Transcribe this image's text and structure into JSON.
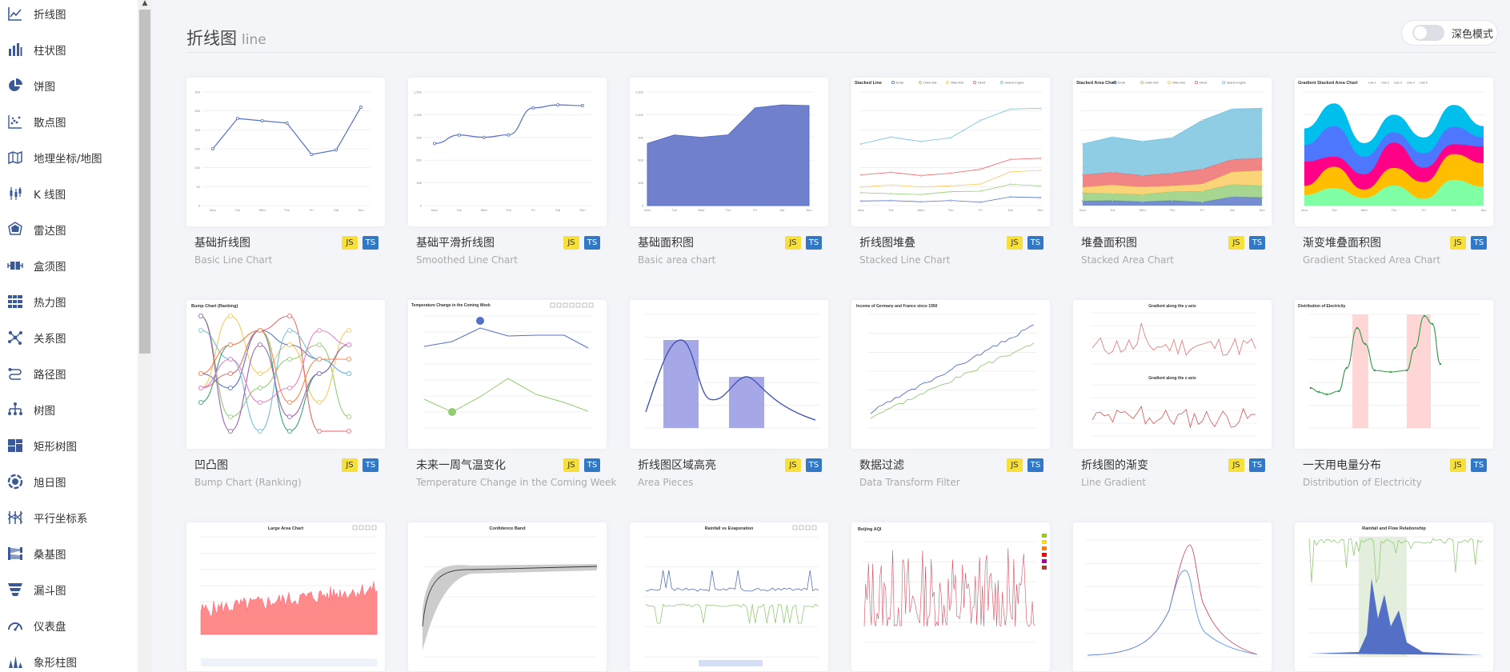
{
  "sidebar": {
    "items": [
      {
        "label": "折线图",
        "icon": "line-chart-icon"
      },
      {
        "label": "柱状图",
        "icon": "bar-chart-icon"
      },
      {
        "label": "饼图",
        "icon": "pie-chart-icon"
      },
      {
        "label": "散点图",
        "icon": "scatter-chart-icon"
      },
      {
        "label": "地理坐标/地图",
        "icon": "map-icon"
      },
      {
        "label": "K 线图",
        "icon": "candlestick-icon"
      },
      {
        "label": "雷达图",
        "icon": "radar-icon"
      },
      {
        "label": "盒须图",
        "icon": "boxplot-icon"
      },
      {
        "label": "热力图",
        "icon": "heatmap-icon"
      },
      {
        "label": "关系图",
        "icon": "graph-icon"
      },
      {
        "label": "路径图",
        "icon": "lines-icon"
      },
      {
        "label": "树图",
        "icon": "tree-icon"
      },
      {
        "label": "矩形树图",
        "icon": "treemap-icon"
      },
      {
        "label": "旭日图",
        "icon": "sunburst-icon"
      },
      {
        "label": "平行坐标系",
        "icon": "parallel-icon"
      },
      {
        "label": "桑基图",
        "icon": "sankey-icon"
      },
      {
        "label": "漏斗图",
        "icon": "funnel-icon"
      },
      {
        "label": "仪表盘",
        "icon": "gauge-icon"
      },
      {
        "label": "象形柱图",
        "icon": "pictorial-bar-icon"
      }
    ]
  },
  "header": {
    "title": "折线图",
    "title_en": "line",
    "dark_mode_label": "深色模式",
    "dark_mode_on": false
  },
  "colors": {
    "accent": "#5470c6",
    "js_badge": "#f7e03c",
    "ts_badge": "#3178c6",
    "page_bg": "#f4f5f9"
  },
  "badges": {
    "js": "JS",
    "ts": "TS"
  },
  "cards": [
    {
      "title": "基础折线图",
      "subtitle": "Basic Line Chart"
    },
    {
      "title": "基础平滑折线图",
      "subtitle": "Smoothed Line Chart"
    },
    {
      "title": "基础面积图",
      "subtitle": "Basic area chart"
    },
    {
      "title": "折线图堆叠",
      "subtitle": "Stacked Line Chart"
    },
    {
      "title": "堆叠面积图",
      "subtitle": "Stacked Area Chart"
    },
    {
      "title": "渐变堆叠面积图",
      "subtitle": "Gradient Stacked Area Chart"
    },
    {
      "title": "凹凸图",
      "subtitle": "Bump Chart (Ranking)"
    },
    {
      "title": "未来一周气温变化",
      "subtitle": "Temperature Change in the Coming Week"
    },
    {
      "title": "折线图区域高亮",
      "subtitle": "Area Pieces"
    },
    {
      "title": "数据过滤",
      "subtitle": "Data Transform Filter"
    },
    {
      "title": "折线图的渐变",
      "subtitle": "Line Gradient"
    },
    {
      "title": "一天用电量分布",
      "subtitle": "Distribution of Electricity"
    },
    {
      "title": "",
      "subtitle": ""
    },
    {
      "title": "",
      "subtitle": ""
    },
    {
      "title": "",
      "subtitle": ""
    },
    {
      "title": "",
      "subtitle": ""
    },
    {
      "title": "",
      "subtitle": ""
    },
    {
      "title": "",
      "subtitle": ""
    }
  ],
  "thumbs": {
    "t_stacked_line": "Stacked Line",
    "t_stacked_area": "Stacked Area Chart",
    "t_gradient_stacked": "Gradient Stacked Area Chart",
    "t_bump": "Bump Chart (Ranking)",
    "t_temp": "Temperature Change in the Coming Week",
    "t_income": "Income of Germany and France since 1950",
    "t_grad_y": "Gradient along the y axis",
    "t_grad_x": "Gradient along the x axis",
    "t_elec": "Distribution of Electricity",
    "t_large_area": "Large Area Chart",
    "t_confidence": "Confidence Band",
    "t_rainfall": "Rainfall vs Evaporation",
    "t_beijing": "Beijing AQI",
    "t_flow": "Rainfall and Flow Relationship"
  },
  "chart_data": [
    {
      "type": "line",
      "title": "",
      "categories": [
        "Mon",
        "Tue",
        "Wed",
        "Thu",
        "Fri",
        "Sat",
        "Sun"
      ],
      "values": [
        150,
        230,
        224,
        218,
        135,
        147,
        260
      ],
      "ylim": [
        0,
        300
      ]
    },
    {
      "type": "line",
      "title": "",
      "categories": [
        "Mon",
        "Tue",
        "Wed",
        "Thu",
        "Fri",
        "Sat",
        "Sun"
      ],
      "values": [
        820,
        932,
        901,
        934,
        1290,
        1330,
        1320
      ],
      "ylim": [
        0,
        1500
      ]
    },
    {
      "type": "area",
      "title": "",
      "categories": [
        "Mon",
        "Tue",
        "Wed",
        "Thu",
        "Fri",
        "Sat",
        "Sun"
      ],
      "values": [
        820,
        932,
        901,
        934,
        1290,
        1330,
        1320
      ],
      "ylim": [
        0,
        1500
      ]
    },
    {
      "type": "line",
      "title": "Stacked Line",
      "categories": [
        "Mon",
        "Tue",
        "Wed",
        "Thu",
        "Fri",
        "Sat",
        "Sun"
      ],
      "series": [
        {
          "name": "Email",
          "values": [
            120,
            132,
            101,
            134,
            90,
            230,
            210
          ]
        },
        {
          "name": "Union Ads",
          "values": [
            220,
            182,
            191,
            234,
            290,
            330,
            310
          ]
        },
        {
          "name": "Video Ads",
          "values": [
            150,
            232,
            201,
            154,
            190,
            330,
            410
          ]
        },
        {
          "name": "Direct",
          "values": [
            320,
            332,
            301,
            334,
            390,
            330,
            320
          ]
        },
        {
          "name": "Search Engine",
          "values": [
            820,
            932,
            901,
            934,
            1290,
            1330,
            1320
          ]
        }
      ],
      "ylim": [
        0,
        3000
      ]
    },
    {
      "type": "area",
      "title": "Stacked Area Chart",
      "categories": [
        "Mon",
        "Tue",
        "Wed",
        "Thu",
        "Fri",
        "Sat",
        "Sun"
      ],
      "series": [
        {
          "name": "Email",
          "values": [
            120,
            132,
            101,
            134,
            90,
            230,
            210
          ]
        },
        {
          "name": "Union Ads",
          "values": [
            220,
            182,
            191,
            234,
            290,
            330,
            310
          ]
        },
        {
          "name": "Video Ads",
          "values": [
            150,
            232,
            201,
            154,
            190,
            330,
            410
          ]
        },
        {
          "name": "Direct",
          "values": [
            320,
            332,
            301,
            334,
            390,
            330,
            320
          ]
        },
        {
          "name": "Search Engine",
          "values": [
            820,
            932,
            901,
            934,
            1290,
            1330,
            1320
          ]
        }
      ],
      "ylim": [
        0,
        3000
      ]
    },
    {
      "type": "area",
      "title": "Gradient Stacked Area Chart",
      "categories": [
        "Mon",
        "Tue",
        "Wed",
        "Thu",
        "Fri",
        "Sat",
        "Sun"
      ],
      "series": [
        {
          "name": "Line 1",
          "values": [
            140,
            232,
            101,
            264,
            90,
            340,
            250
          ]
        },
        {
          "name": "Line 2",
          "values": [
            120,
            282,
            111,
            234,
            220,
            340,
            310
          ]
        },
        {
          "name": "Line 3",
          "values": [
            320,
            132,
            201,
            334,
            190,
            130,
            220
          ]
        },
        {
          "name": "Line 4",
          "values": [
            220,
            402,
            231,
            134,
            190,
            230,
            120
          ]
        },
        {
          "name": "Line 5",
          "values": [
            220,
            302,
            181,
            234,
            210,
            290,
            150
          ]
        }
      ],
      "ylim": [
        0,
        1500
      ]
    }
  ]
}
